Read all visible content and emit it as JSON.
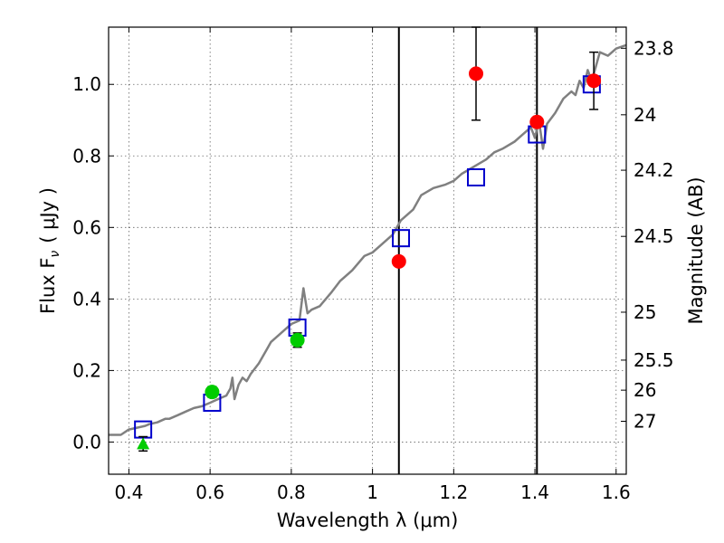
{
  "chart_data": {
    "type": "scatter",
    "xlabel": "Wavelength  λ (μm)",
    "ylabel": "Flux  F",
    "ylabel_sub": "ν",
    "ylabel_unit": "( μJy )",
    "y2label": "Magnitude (AB)",
    "xlim": [
      0.35,
      1.625
    ],
    "ylim": [
      -0.09,
      1.16
    ],
    "xticks": [
      0.4,
      0.6,
      0.8,
      1.0,
      1.2,
      1.4,
      1.6
    ],
    "xtick_labels": [
      "0.4",
      "0.6",
      "0.8",
      "1",
      "1.2",
      "1.4",
      "1.6"
    ],
    "yticks": [
      0.0,
      0.2,
      0.4,
      0.6,
      0.8,
      1.0
    ],
    "ytick_labels": [
      "0.0",
      "0.2",
      "0.4",
      "0.6",
      "0.8",
      "1.0"
    ],
    "mag_ticks": [
      {
        "flux": 1.101,
        "label": "23.8"
      },
      {
        "flux": 0.915,
        "label": "24"
      },
      {
        "flux": 0.76,
        "label": "24.2"
      },
      {
        "flux": 0.575,
        "label": "24.5"
      },
      {
        "flux": 0.363,
        "label": "25"
      },
      {
        "flux": 0.229,
        "label": "25.5"
      },
      {
        "flux": 0.145,
        "label": "26"
      },
      {
        "flux": 0.058,
        "label": "27"
      }
    ],
    "grid": true,
    "vertical_lines": [
      1.065,
      1.405
    ],
    "spectrum": {
      "color": "#808080",
      "x": [
        0.35,
        0.38,
        0.4,
        0.42,
        0.44,
        0.45,
        0.47,
        0.49,
        0.5,
        0.52,
        0.54,
        0.56,
        0.58,
        0.59,
        0.6,
        0.61,
        0.62,
        0.63,
        0.64,
        0.65,
        0.655,
        0.66,
        0.67,
        0.68,
        0.69,
        0.7,
        0.72,
        0.74,
        0.75,
        0.77,
        0.78,
        0.8,
        0.82,
        0.83,
        0.84,
        0.85,
        0.87,
        0.9,
        0.92,
        0.95,
        0.98,
        1.0,
        1.02,
        1.05,
        1.07,
        1.1,
        1.12,
        1.15,
        1.18,
        1.2,
        1.22,
        1.25,
        1.28,
        1.3,
        1.32,
        1.35,
        1.37,
        1.39,
        1.4,
        1.41,
        1.42,
        1.43,
        1.45,
        1.47,
        1.49,
        1.5,
        1.51,
        1.52,
        1.53,
        1.54,
        1.55,
        1.56,
        1.58,
        1.6,
        1.625
      ],
      "y": [
        0.02,
        0.02,
        0.035,
        0.04,
        0.045,
        0.05,
        0.055,
        0.065,
        0.065,
        0.075,
        0.085,
        0.095,
        0.1,
        0.105,
        0.11,
        0.115,
        0.12,
        0.125,
        0.13,
        0.15,
        0.18,
        0.12,
        0.16,
        0.18,
        0.17,
        0.19,
        0.22,
        0.26,
        0.28,
        0.3,
        0.31,
        0.33,
        0.34,
        0.43,
        0.36,
        0.37,
        0.38,
        0.42,
        0.45,
        0.48,
        0.52,
        0.53,
        0.55,
        0.58,
        0.62,
        0.65,
        0.69,
        0.71,
        0.72,
        0.73,
        0.75,
        0.77,
        0.79,
        0.81,
        0.82,
        0.84,
        0.86,
        0.88,
        0.85,
        0.9,
        0.82,
        0.89,
        0.92,
        0.96,
        0.98,
        0.97,
        1.01,
        0.99,
        1.04,
        1.01,
        1.05,
        1.09,
        1.08,
        1.1,
        1.11
      ]
    },
    "series": [
      {
        "marker": "square",
        "color": "#0000cc",
        "x": [
          0.435,
          0.605,
          0.815,
          1.07,
          1.255,
          1.405,
          1.54
        ],
        "y": [
          0.035,
          0.11,
          0.32,
          0.57,
          0.74,
          0.86,
          1.0
        ]
      },
      {
        "marker": "circle",
        "color": "#ff0000",
        "x": [
          1.065,
          1.255,
          1.405,
          1.545
        ],
        "y": [
          0.505,
          1.03,
          0.895,
          1.01
        ],
        "err": [
          0,
          0.13,
          0,
          0.08
        ]
      },
      {
        "marker": "circle",
        "color": "#00cc00",
        "x": [
          0.605,
          0.815
        ],
        "y": [
          0.14,
          0.285
        ],
        "err": [
          0.015,
          0.02
        ]
      },
      {
        "marker": "triangle",
        "color": "#00cc00",
        "x": [
          0.435
        ],
        "y": [
          -0.005
        ],
        "err": [
          0.02
        ]
      }
    ]
  }
}
